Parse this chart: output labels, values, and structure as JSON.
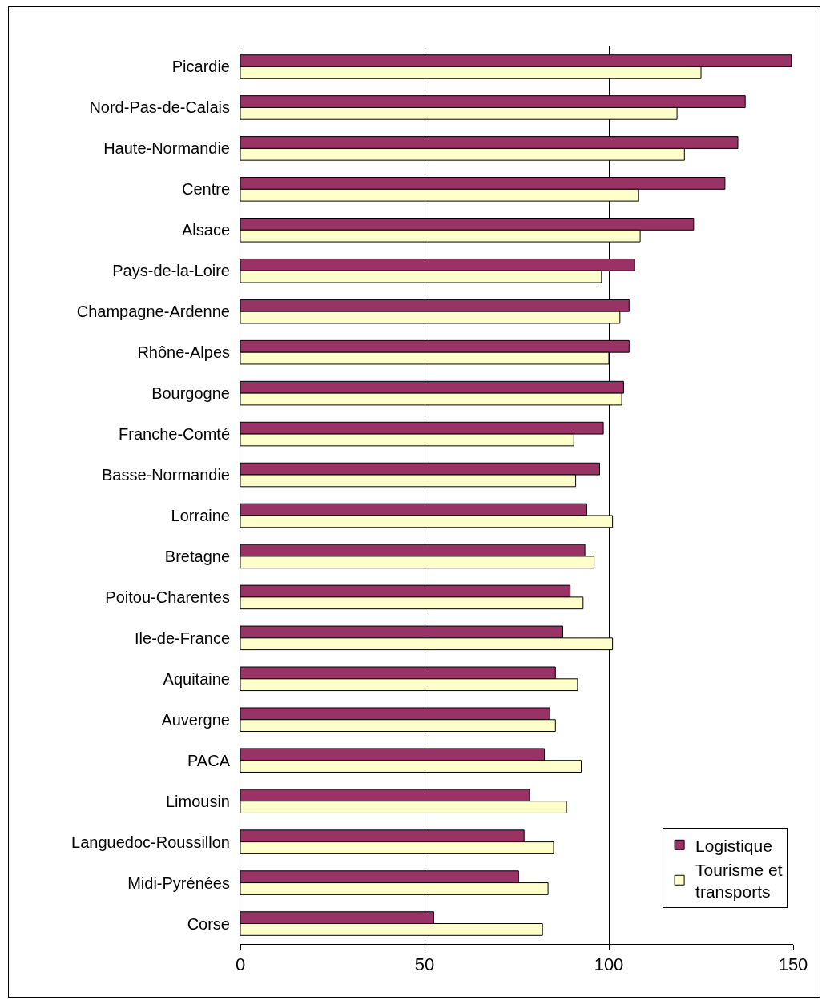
{
  "chart_data": {
    "type": "bar",
    "orientation": "horizontal",
    "categories": [
      "Picardie",
      "Nord-Pas-de-Calais",
      "Haute-Normandie",
      "Centre",
      "Alsace",
      "Pays-de-la-Loire",
      "Champagne-Ardenne",
      "Rhône-Alpes",
      "Bourgogne",
      "Franche-Comté",
      "Basse-Normandie",
      "Lorraine",
      "Bretagne",
      "Poitou-Charentes",
      "Ile-de-France",
      "Aquitaine",
      "Auvergne",
      "PACA",
      "Limousin",
      "Languedoc-Roussillon",
      "Midi-Pyrénées",
      "Corse"
    ],
    "series": [
      {
        "name": "Logistique",
        "color": "#993366",
        "values": [
          149.5,
          137,
          135,
          131.5,
          123,
          107,
          105.5,
          105.5,
          104,
          98.5,
          97.5,
          94,
          93.5,
          89.5,
          87.5,
          85.5,
          84,
          82.5,
          78.5,
          77,
          75.5,
          52.5
        ]
      },
      {
        "name": "Tourisme et transports",
        "color": "#ffffcc",
        "values": [
          125,
          118.5,
          120.5,
          108,
          108.5,
          98,
          103,
          100,
          103.5,
          90.5,
          91,
          101,
          96,
          93,
          101,
          91.5,
          85.5,
          92.5,
          88.5,
          85,
          83.5,
          82
        ]
      }
    ],
    "xlim": [
      0,
      150
    ],
    "xticks": [
      0,
      50,
      100,
      150
    ],
    "grid": "x",
    "legend": "bottom right"
  }
}
